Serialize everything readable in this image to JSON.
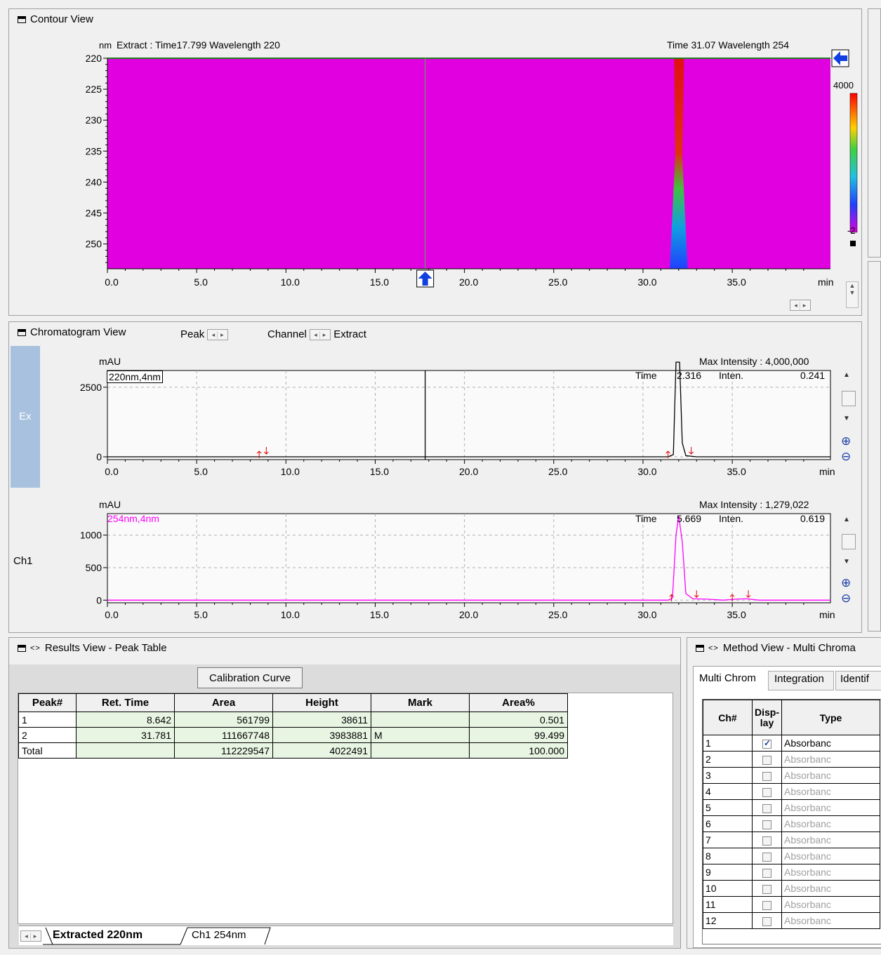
{
  "contour": {
    "title": "Contour View",
    "unit_nm": "nm",
    "extract_label": "Extract : Time17.799   Wavelength  220",
    "cursor_label": "Time 31.07    Wavelength  254",
    "y_ticks": [
      "220",
      "225",
      "230",
      "235",
      "240",
      "245",
      "250"
    ],
    "x_ticks": [
      "0.0",
      "5.0",
      "10.0",
      "15.0",
      "20.0",
      "25.0",
      "30.0",
      "35.0"
    ],
    "x_unit": "min",
    "colorbar_max": "4000",
    "colorbar_min": "-2",
    "colors": {
      "background": "#e000e0",
      "peak": "#e01010"
    }
  },
  "chromatogram": {
    "title": "Chromatogram View",
    "peak_label": "Peak",
    "channel_label": "Channel",
    "extract_label": "Extract",
    "side_ex": "Ex",
    "side_ch1": "Ch1",
    "plot1": {
      "unit": "mAU",
      "legend": "220nm,4nm",
      "max_intensity": "Max Intensity : 4,000,000",
      "time_label": "Time",
      "time_value": "2.316",
      "inten_label": "Inten.",
      "inten_value": "0.241",
      "y_ticks": [
        "2500",
        "0"
      ],
      "x_ticks": [
        "0.0",
        "5.0",
        "10.0",
        "15.0",
        "20.0",
        "25.0",
        "30.0",
        "35.0"
      ],
      "x_unit": "min",
      "color": "#000000"
    },
    "plot2": {
      "unit": "mAU",
      "legend": "254nm,4nm",
      "max_intensity": "Max Intensity : 1,279,022",
      "time_label": "Time",
      "time_value": "5.669",
      "inten_label": "Inten.",
      "inten_value": "0.619",
      "y_ticks": [
        "1000",
        "500",
        "0"
      ],
      "x_ticks": [
        "0.0",
        "5.0",
        "10.0",
        "15.0",
        "20.0",
        "25.0",
        "30.0",
        "35.0"
      ],
      "x_unit": "min",
      "color": "#ff00ff"
    }
  },
  "results": {
    "title": "Results View - Peak Table",
    "calibration_button": "Calibration Curve",
    "headers": [
      "Peak#",
      "Ret. Time",
      "Area",
      "Height",
      "Mark",
      "Area%"
    ],
    "rows": [
      [
        "1",
        "8.642",
        "561799",
        "38611",
        "",
        "0.501"
      ],
      [
        "2",
        "31.781",
        "111667748",
        "3983881",
        "M",
        "99.499"
      ],
      [
        "Total",
        "",
        "112229547",
        "4022491",
        "",
        "100.000"
      ]
    ],
    "tabs": [
      "Extracted 220nm",
      "Ch1 254nm"
    ]
  },
  "method": {
    "title": "Method View - Multi Chroma",
    "tabs": [
      "Multi Chrom",
      "Integration",
      "Identif"
    ],
    "headers": [
      "Ch#",
      "Disp-\nlay",
      "Type"
    ],
    "rows": [
      {
        "ch": "1",
        "display": true,
        "type": "Absorbanc"
      },
      {
        "ch": "2",
        "display": false,
        "type": "Absorbanc"
      },
      {
        "ch": "3",
        "display": false,
        "type": "Absorbanc"
      },
      {
        "ch": "4",
        "display": false,
        "type": "Absorbanc"
      },
      {
        "ch": "5",
        "display": false,
        "type": "Absorbanc"
      },
      {
        "ch": "6",
        "display": false,
        "type": "Absorbanc"
      },
      {
        "ch": "7",
        "display": false,
        "type": "Absorbanc"
      },
      {
        "ch": "8",
        "display": false,
        "type": "Absorbanc"
      },
      {
        "ch": "9",
        "display": false,
        "type": "Absorbanc"
      },
      {
        "ch": "10",
        "display": false,
        "type": "Absorbanc"
      },
      {
        "ch": "11",
        "display": false,
        "type": "Absorbanc"
      },
      {
        "ch": "12",
        "display": false,
        "type": "Absorbanc"
      }
    ]
  }
}
